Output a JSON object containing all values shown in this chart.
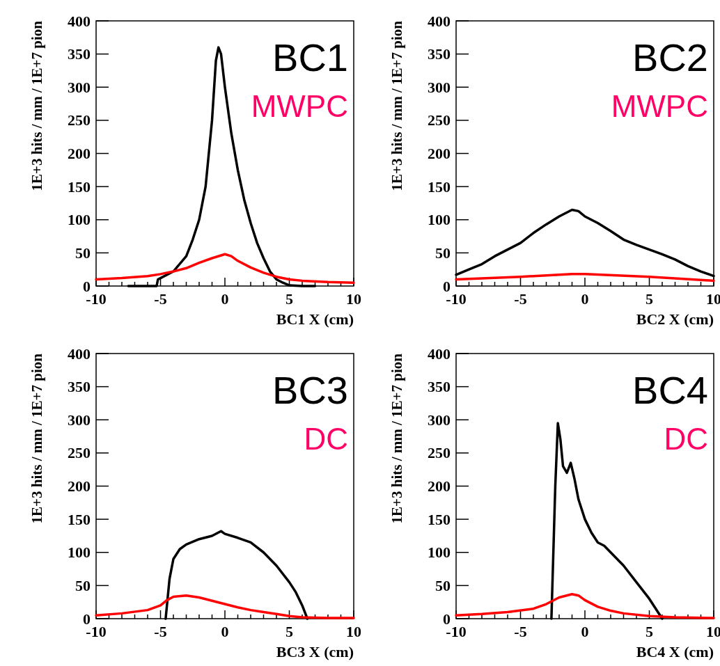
{
  "chart_data": [
    {
      "type": "line",
      "xlabel": "BC1 X (cm)",
      "ylabel": "1E+3 hits / mm / 1E+7 pion",
      "annotations": [
        "BC1",
        "MWPC"
      ],
      "xlim": [
        -10,
        10
      ],
      "ylim": [
        0,
        400
      ],
      "xticks": [
        -10,
        {
          "value": -9,
          "label": null
        },
        {
          "value": -8,
          "label": null
        },
        {
          "value": -7,
          "label": null
        },
        {
          "value": -6,
          "label": null
        },
        -5,
        {
          "value": -4,
          "label": null
        },
        {
          "value": -3,
          "label": null
        },
        {
          "value": -2,
          "label": null
        },
        {
          "value": -1,
          "label": null
        },
        0,
        {
          "value": 1,
          "label": null
        },
        {
          "value": 2,
          "label": null
        },
        {
          "value": 3,
          "label": null
        },
        {
          "value": 4,
          "label": null
        },
        5,
        {
          "value": 6,
          "label": null
        },
        {
          "value": 7,
          "label": null
        },
        {
          "value": 8,
          "label": null
        },
        {
          "value": 9,
          "label": null
        },
        10
      ],
      "yticks": [
        0,
        50,
        100,
        150,
        200,
        250,
        300,
        350,
        400
      ],
      "series": [
        {
          "color": "#000000",
          "x": [
            -7.5,
            -5.3,
            -5.2,
            -5,
            -4,
            -3,
            -2.5,
            -2,
            -1.5,
            -1,
            -0.7,
            -0.5,
            -0.3,
            0,
            0.5,
            1,
            1.5,
            2,
            2.5,
            3,
            3.5,
            4,
            4.5,
            5,
            6,
            7
          ],
          "values": [
            0,
            0,
            10,
            12,
            22,
            45,
            70,
            100,
            150,
            250,
            340,
            360,
            350,
            300,
            230,
            175,
            130,
            95,
            65,
            42,
            22,
            10,
            5,
            1,
            0,
            0
          ]
        },
        {
          "color": "#ff0000",
          "x": [
            -10,
            -8,
            -6,
            -5,
            -4,
            -3,
            -2,
            -1,
            0,
            0.5,
            1,
            2,
            3,
            4,
            5,
            6,
            8,
            10
          ],
          "values": [
            10,
            12,
            15,
            18,
            22,
            27,
            35,
            42,
            48,
            45,
            38,
            28,
            20,
            14,
            10,
            8,
            6,
            5
          ]
        }
      ]
    },
    {
      "type": "line",
      "xlabel": "BC2 X (cm)",
      "ylabel": "1E+3 hits / mm / 1E+7 pion",
      "annotations": [
        "BC2",
        "MWPC"
      ],
      "xlim": [
        -10,
        10
      ],
      "ylim": [
        0,
        400
      ],
      "xticks": [
        -10,
        {
          "value": -9,
          "label": null
        },
        {
          "value": -8,
          "label": null
        },
        {
          "value": -7,
          "label": null
        },
        {
          "value": -6,
          "label": null
        },
        -5,
        {
          "value": -4,
          "label": null
        },
        {
          "value": -3,
          "label": null
        },
        {
          "value": -2,
          "label": null
        },
        {
          "value": -1,
          "label": null
        },
        0,
        {
          "value": 1,
          "label": null
        },
        {
          "value": 2,
          "label": null
        },
        {
          "value": 3,
          "label": null
        },
        {
          "value": 4,
          "label": null
        },
        5,
        {
          "value": 6,
          "label": null
        },
        {
          "value": 7,
          "label": null
        },
        {
          "value": 8,
          "label": null
        },
        {
          "value": 9,
          "label": null
        },
        10
      ],
      "yticks": [
        0,
        50,
        100,
        150,
        200,
        250,
        300,
        350,
        400
      ],
      "series": [
        {
          "color": "#000000",
          "x": [
            -10,
            -9,
            -8,
            -7,
            -6,
            -5,
            -4,
            -3,
            -2,
            -1,
            -0.5,
            0,
            1,
            2,
            3,
            4,
            5,
            6,
            7,
            8,
            9,
            10
          ],
          "values": [
            17,
            25,
            33,
            45,
            55,
            65,
            80,
            93,
            105,
            115,
            113,
            105,
            95,
            83,
            70,
            62,
            55,
            48,
            40,
            30,
            22,
            15
          ]
        },
        {
          "color": "#ff0000",
          "x": [
            -10,
            -5,
            -1,
            0,
            5,
            10
          ],
          "values": [
            10,
            14,
            18,
            18,
            14,
            8
          ]
        }
      ]
    },
    {
      "type": "line",
      "xlabel": "BC3 X (cm)",
      "ylabel": "1E+3 hits / mm / 1E+7 pion",
      "annotations": [
        "BC3",
        "DC"
      ],
      "xlim": [
        -10,
        10
      ],
      "ylim": [
        0,
        400
      ],
      "xticks": [
        -10,
        {
          "value": -9,
          "label": null
        },
        {
          "value": -8,
          "label": null
        },
        {
          "value": -7,
          "label": null
        },
        {
          "value": -6,
          "label": null
        },
        -5,
        {
          "value": -4,
          "label": null
        },
        {
          "value": -3,
          "label": null
        },
        {
          "value": -2,
          "label": null
        },
        {
          "value": -1,
          "label": null
        },
        0,
        {
          "value": 1,
          "label": null
        },
        {
          "value": 2,
          "label": null
        },
        {
          "value": 3,
          "label": null
        },
        {
          "value": 4,
          "label": null
        },
        5,
        {
          "value": 6,
          "label": null
        },
        {
          "value": 7,
          "label": null
        },
        {
          "value": 8,
          "label": null
        },
        {
          "value": 9,
          "label": null
        },
        10
      ],
      "yticks": [
        0,
        50,
        100,
        150,
        200,
        250,
        300,
        350,
        400
      ],
      "series": [
        {
          "color": "#000000",
          "x": [
            -4.6,
            -4.3,
            -4,
            -3.5,
            -3,
            -2,
            -1,
            -0.3,
            0,
            1,
            2,
            3,
            4,
            5,
            5.5,
            6,
            6.4
          ],
          "values": [
            0,
            60,
            90,
            105,
            112,
            120,
            125,
            132,
            128,
            122,
            115,
            100,
            80,
            55,
            40,
            20,
            0
          ]
        },
        {
          "color": "#ff0000",
          "x": [
            -10,
            -8,
            -6,
            -5,
            -4.5,
            -4,
            -3,
            -2,
            -1,
            0,
            1,
            2,
            3,
            4,
            5,
            6,
            8,
            10
          ],
          "values": [
            5,
            8,
            13,
            20,
            28,
            33,
            35,
            32,
            27,
            22,
            17,
            13,
            10,
            7,
            4,
            2,
            1,
            1
          ]
        }
      ]
    },
    {
      "type": "line",
      "xlabel": "BC4 X (cm)",
      "ylabel": "1E+3 hits / mm / 1E+7 pion",
      "annotations": [
        "BC4",
        "DC"
      ],
      "xlim": [
        -10,
        10
      ],
      "ylim": [
        0,
        400
      ],
      "xticks": [
        -10,
        {
          "value": -9,
          "label": null
        },
        {
          "value": -8,
          "label": null
        },
        {
          "value": -7,
          "label": null
        },
        {
          "value": -6,
          "label": null
        },
        -5,
        {
          "value": -4,
          "label": null
        },
        {
          "value": -3,
          "label": null
        },
        {
          "value": -2,
          "label": null
        },
        {
          "value": -1,
          "label": null
        },
        0,
        {
          "value": 1,
          "label": null
        },
        {
          "value": 2,
          "label": null
        },
        {
          "value": 3,
          "label": null
        },
        {
          "value": 4,
          "label": null
        },
        5,
        {
          "value": 6,
          "label": null
        },
        {
          "value": 7,
          "label": null
        },
        {
          "value": 8,
          "label": null
        },
        {
          "value": 9,
          "label": null
        },
        10
      ],
      "yticks": [
        0,
        50,
        100,
        150,
        200,
        250,
        300,
        350,
        400
      ],
      "series": [
        {
          "color": "#000000",
          "x": [
            -2.6,
            -2.3,
            -2.1,
            -1.9,
            -1.7,
            -1.4,
            -1.1,
            -0.8,
            -0.5,
            0,
            0.5,
            1,
            1.5,
            2,
            3,
            4,
            5,
            5.5,
            6
          ],
          "values": [
            0,
            200,
            295,
            270,
            230,
            220,
            235,
            210,
            180,
            150,
            130,
            115,
            110,
            100,
            80,
            55,
            30,
            15,
            0
          ]
        },
        {
          "color": "#ff0000",
          "x": [
            -10,
            -8,
            -6,
            -4,
            -3,
            -2,
            -1,
            -0.5,
            0,
            1,
            2,
            3,
            5,
            7,
            10
          ],
          "values": [
            5,
            7,
            10,
            15,
            22,
            32,
            37,
            35,
            28,
            18,
            12,
            8,
            4,
            2,
            1
          ]
        }
      ]
    }
  ]
}
